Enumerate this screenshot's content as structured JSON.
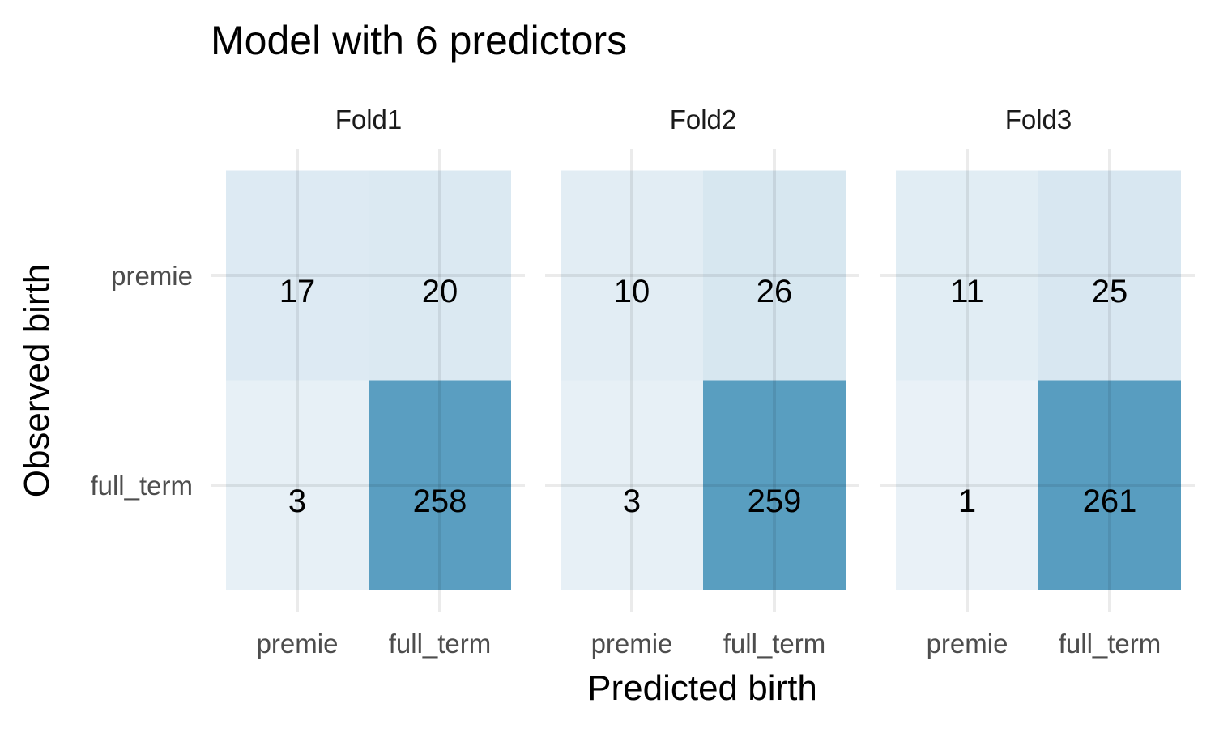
{
  "chart_data": {
    "type": "heatmap",
    "title": "Model with 6 predictors",
    "xlabel": "Predicted birth",
    "ylabel": "Observed birth",
    "x_categories": [
      "premie",
      "full_term"
    ],
    "y_categories": [
      "premie",
      "full_term"
    ],
    "grid": true,
    "color_low": "#e9f1f7",
    "color_high": "#589dc0",
    "facets": [
      {
        "name": "Fold1",
        "cells": [
          {
            "observed": "premie",
            "predicted": "premie",
            "value": 17
          },
          {
            "observed": "premie",
            "predicted": "full_term",
            "value": 20
          },
          {
            "observed": "full_term",
            "predicted": "premie",
            "value": 3
          },
          {
            "observed": "full_term",
            "predicted": "full_term",
            "value": 258
          }
        ]
      },
      {
        "name": "Fold2",
        "cells": [
          {
            "observed": "premie",
            "predicted": "premie",
            "value": 10
          },
          {
            "observed": "premie",
            "predicted": "full_term",
            "value": 26
          },
          {
            "observed": "full_term",
            "predicted": "premie",
            "value": 3
          },
          {
            "observed": "full_term",
            "predicted": "full_term",
            "value": 259
          }
        ]
      },
      {
        "name": "Fold3",
        "cells": [
          {
            "observed": "premie",
            "predicted": "premie",
            "value": 11
          },
          {
            "observed": "premie",
            "predicted": "full_term",
            "value": 25
          },
          {
            "observed": "full_term",
            "predicted": "premie",
            "value": 1
          },
          {
            "observed": "full_term",
            "predicted": "full_term",
            "value": 261
          }
        ]
      }
    ]
  }
}
